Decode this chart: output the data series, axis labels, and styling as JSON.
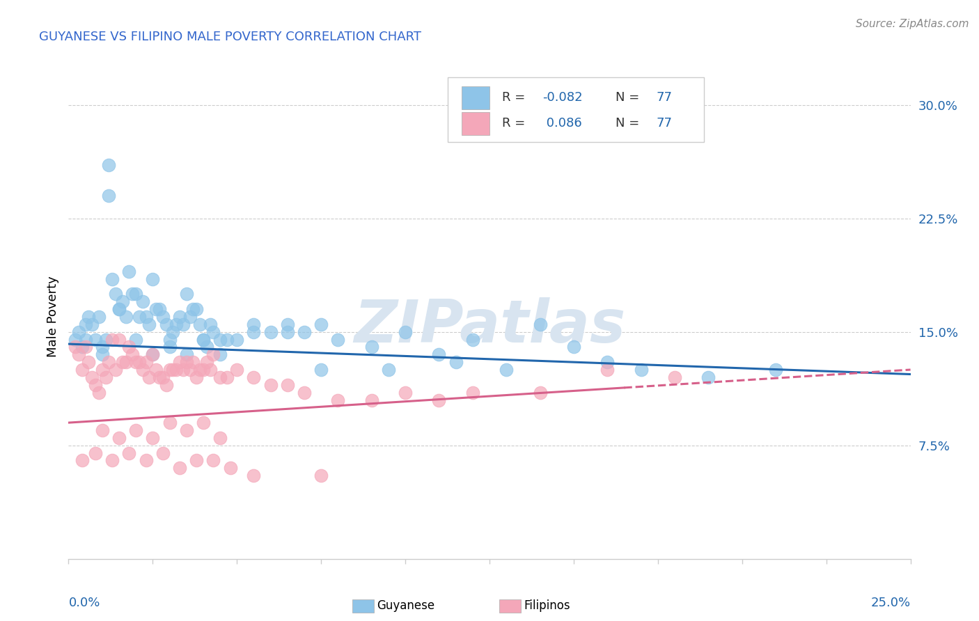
{
  "title": "GUYANESE VS FILIPINO MALE POVERTY CORRELATION CHART",
  "source": "Source: ZipAtlas.com",
  "ylabel": "Male Poverty",
  "ytick_vals": [
    7.5,
    15.0,
    22.5,
    30.0
  ],
  "xmin": 0.0,
  "xmax": 25.0,
  "ymin": 0.0,
  "ymax": 32.0,
  "R_guyanese": -0.082,
  "R_filipinos": 0.086,
  "N_guyanese": 77,
  "N_filipinos": 77,
  "color_guyanese": "#8ec4e8",
  "color_filipinos": "#f4a7b9",
  "color_guyanese_line": "#2166ac",
  "color_filipinos_line": "#d6608a",
  "title_color": "#3366cc",
  "source_color": "#888888",
  "grid_color": "#cccccc",
  "watermark_color": "#d8e4f0",
  "watermark": "ZIPatlas",
  "guyanese_x": [
    0.2,
    0.3,
    0.4,
    0.5,
    0.5,
    0.6,
    0.7,
    0.8,
    0.9,
    1.0,
    1.0,
    1.1,
    1.2,
    1.3,
    1.4,
    1.5,
    1.6,
    1.7,
    1.8,
    1.9,
    2.0,
    2.1,
    2.2,
    2.3,
    2.4,
    2.5,
    2.6,
    2.7,
    2.8,
    2.9,
    3.0,
    3.1,
    3.2,
    3.3,
    3.4,
    3.5,
    3.6,
    3.7,
    3.8,
    3.9,
    4.0,
    4.1,
    4.2,
    4.3,
    4.5,
    4.7,
    5.0,
    5.5,
    6.0,
    6.5,
    7.0,
    7.5,
    8.0,
    9.0,
    10.0,
    11.0,
    12.0,
    13.0,
    14.0,
    15.0,
    16.0,
    17.0,
    19.0,
    21.0,
    1.2,
    1.5,
    2.0,
    2.5,
    3.0,
    3.5,
    4.0,
    4.5,
    5.5,
    6.5,
    7.5,
    9.5,
    11.5
  ],
  "guyanese_y": [
    14.5,
    15.0,
    14.0,
    14.5,
    15.5,
    16.0,
    15.5,
    14.5,
    16.0,
    13.5,
    14.0,
    14.5,
    26.0,
    18.5,
    17.5,
    16.5,
    17.0,
    16.0,
    19.0,
    17.5,
    17.5,
    16.0,
    17.0,
    16.0,
    15.5,
    18.5,
    16.5,
    16.5,
    16.0,
    15.5,
    14.0,
    15.0,
    15.5,
    16.0,
    15.5,
    17.5,
    16.0,
    16.5,
    16.5,
    15.5,
    14.5,
    14.0,
    15.5,
    15.0,
    14.5,
    14.5,
    14.5,
    15.0,
    15.0,
    15.5,
    15.0,
    15.5,
    14.5,
    14.0,
    15.0,
    13.5,
    14.5,
    12.5,
    15.5,
    14.0,
    13.0,
    12.5,
    12.0,
    12.5,
    24.0,
    16.5,
    14.5,
    13.5,
    14.5,
    13.5,
    14.5,
    13.5,
    15.5,
    15.0,
    12.5,
    12.5,
    13.0
  ],
  "filipinos_x": [
    0.2,
    0.3,
    0.4,
    0.5,
    0.6,
    0.7,
    0.8,
    0.9,
    1.0,
    1.1,
    1.2,
    1.3,
    1.4,
    1.5,
    1.6,
    1.7,
    1.8,
    1.9,
    2.0,
    2.1,
    2.2,
    2.3,
    2.4,
    2.5,
    2.6,
    2.7,
    2.8,
    2.9,
    3.0,
    3.1,
    3.2,
    3.3,
    3.4,
    3.5,
    3.6,
    3.7,
    3.8,
    3.9,
    4.0,
    4.1,
    4.2,
    4.3,
    4.5,
    4.7,
    5.0,
    5.5,
    6.0,
    6.5,
    7.0,
    8.0,
    9.0,
    10.0,
    11.0,
    12.0,
    14.0,
    16.0,
    18.0,
    1.0,
    1.5,
    2.0,
    2.5,
    3.0,
    3.5,
    4.0,
    4.5,
    0.4,
    0.8,
    1.3,
    1.8,
    2.3,
    2.8,
    3.3,
    3.8,
    4.3,
    4.8,
    5.5,
    7.5
  ],
  "filipinos_y": [
    14.0,
    13.5,
    12.5,
    14.0,
    13.0,
    12.0,
    11.5,
    11.0,
    12.5,
    12.0,
    13.0,
    14.5,
    12.5,
    14.5,
    13.0,
    13.0,
    14.0,
    13.5,
    13.0,
    13.0,
    12.5,
    13.0,
    12.0,
    13.5,
    12.5,
    12.0,
    12.0,
    11.5,
    12.5,
    12.5,
    12.5,
    13.0,
    12.5,
    13.0,
    12.5,
    13.0,
    12.0,
    12.5,
    12.5,
    13.0,
    12.5,
    13.5,
    12.0,
    12.0,
    12.5,
    12.0,
    11.5,
    11.5,
    11.0,
    10.5,
    10.5,
    11.0,
    10.5,
    11.0,
    11.0,
    12.5,
    12.0,
    8.5,
    8.0,
    8.5,
    8.0,
    9.0,
    8.5,
    9.0,
    8.0,
    6.5,
    7.0,
    6.5,
    7.0,
    6.5,
    7.0,
    6.0,
    6.5,
    6.5,
    6.0,
    5.5,
    5.5
  ],
  "guyanese_line_x0": 0.0,
  "guyanese_line_y0": 14.2,
  "guyanese_line_x1": 25.0,
  "guyanese_line_y1": 12.2,
  "filipinos_line_x0": 0.0,
  "filipinos_line_y0": 9.0,
  "filipinos_line_x1": 25.0,
  "filipinos_line_y1": 12.5,
  "filipinos_dash_start_x": 16.5
}
